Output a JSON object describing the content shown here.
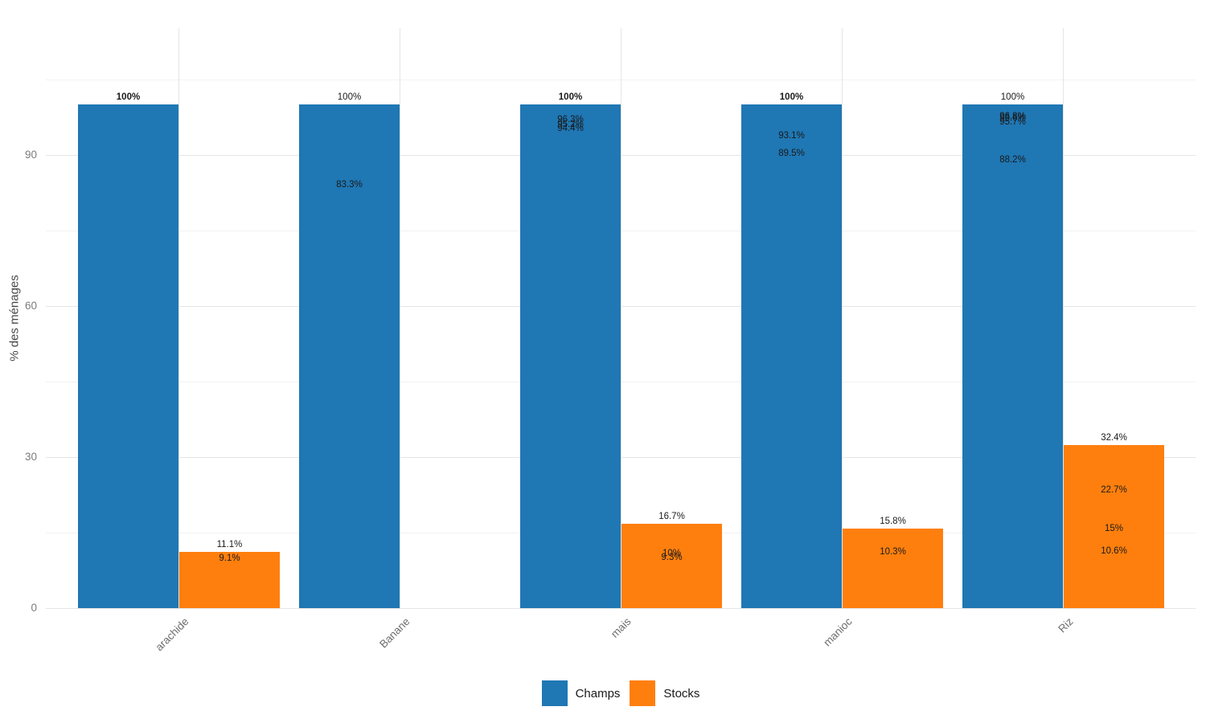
{
  "chart_data": {
    "type": "bar",
    "title": "",
    "ylabel": "% des ménages",
    "yticks": [
      0,
      30,
      60,
      90
    ],
    "yticks_minor": [
      15,
      45,
      75,
      105
    ],
    "ylim": [
      0,
      115
    ],
    "grid": true,
    "legend_position": "bottom-center",
    "categories": [
      "arachide",
      "Banane",
      "mais",
      "manioc",
      "Riz"
    ],
    "series": [
      {
        "name": "Champs",
        "color": "#1f77b4"
      },
      {
        "name": "Stocks",
        "color": "#ff7f0e"
      }
    ],
    "bars": [
      {
        "category": "arachide",
        "champs": {
          "height": 100,
          "labels": [
            {
              "text": "100%",
              "value": 100,
              "above": true,
              "bold": true
            }
          ]
        },
        "stocks": {
          "height": 11.1,
          "labels": [
            {
              "text": "11.1%",
              "value": 11.1,
              "above": true
            },
            {
              "text": "9.1%",
              "value": 9.1
            }
          ]
        }
      },
      {
        "category": "Banane",
        "champs": {
          "height": 100,
          "labels": [
            {
              "text": "100%",
              "value": 100,
              "above": true
            },
            {
              "text": "83.3%",
              "value": 83.3
            }
          ]
        },
        "stocks": {
          "height": 0,
          "labels": []
        }
      },
      {
        "category": "mais",
        "champs": {
          "height": 100,
          "labels": [
            {
              "text": "100%",
              "value": 100,
              "above": true,
              "bold": true
            },
            {
              "text": "96.3%",
              "value": 96.3
            },
            {
              "text": "95.2%",
              "value": 95.2
            },
            {
              "text": "94.4%",
              "value": 94.4
            }
          ]
        },
        "stocks": {
          "height": 16.7,
          "labels": [
            {
              "text": "16.7%",
              "value": 16.7,
              "above": true
            },
            {
              "text": "10%",
              "value": 10
            },
            {
              "text": "9.3%",
              "value": 9.3
            }
          ]
        }
      },
      {
        "category": "manioc",
        "champs": {
          "height": 100,
          "labels": [
            {
              "text": "100%",
              "value": 100,
              "above": true,
              "bold": true
            },
            {
              "text": "93.1%",
              "value": 93.1
            },
            {
              "text": "89.5%",
              "value": 89.5
            }
          ]
        },
        "stocks": {
          "height": 15.8,
          "labels": [
            {
              "text": "15.8%",
              "value": 15.8,
              "above": true
            },
            {
              "text": "10.3%",
              "value": 10.3
            }
          ]
        }
      },
      {
        "category": "Riz",
        "champs": {
          "height": 100,
          "labels": [
            {
              "text": "100%",
              "value": 100,
              "above": true
            },
            {
              "text": "96.8%",
              "value": 96.8
            },
            {
              "text": "96.6%",
              "value": 96.6
            },
            {
              "text": "95.7%",
              "value": 95.7
            },
            {
              "text": "88.2%",
              "value": 88.2
            }
          ]
        },
        "stocks": {
          "height": 32.4,
          "labels": [
            {
              "text": "32.4%",
              "value": 32.4,
              "above": true
            },
            {
              "text": "22.7%",
              "value": 22.7
            },
            {
              "text": "15%",
              "value": 15
            },
            {
              "text": "10.6%",
              "value": 10.6
            }
          ]
        }
      }
    ]
  }
}
